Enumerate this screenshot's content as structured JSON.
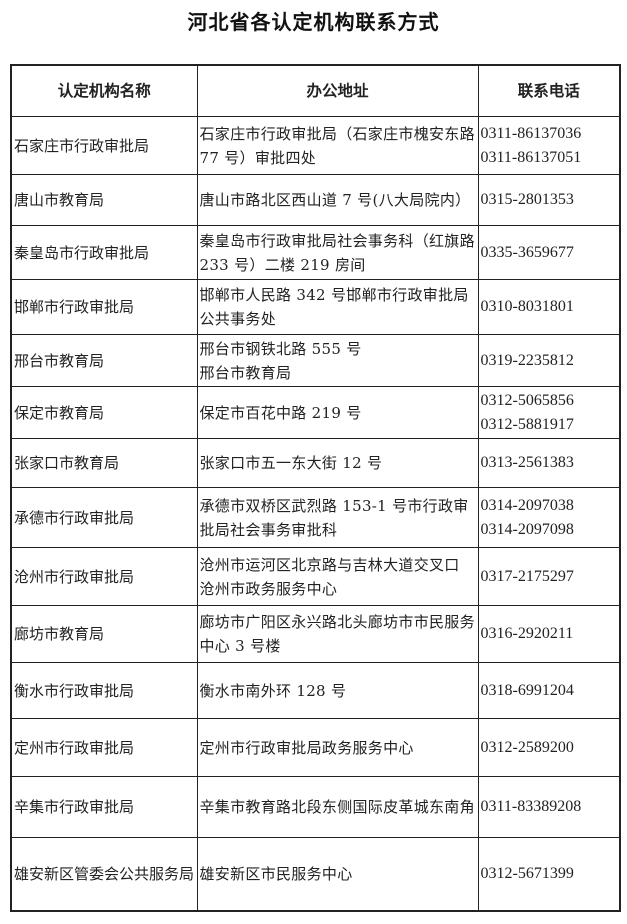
{
  "title": "河北省各认定机构联系方式",
  "headers": {
    "name": "认定机构名称",
    "address": "办公地址",
    "phone": "联系电话"
  },
  "rows": [
    {
      "name": "石家庄市行政审批局",
      "address": "石家庄市行政审批局（石家庄市槐安东路 77 号）审批四处",
      "phone": [
        "0311-86137036",
        "0311-86137051"
      ]
    },
    {
      "name": "唐山市教育局",
      "address": "唐山市路北区西山道 7 号(八大局院内）",
      "phone": [
        "0315-2801353"
      ]
    },
    {
      "name": "秦皇岛市行政审批局",
      "address": "秦皇岛市行政审批局社会事务科（红旗路 233 号）二楼 219 房间",
      "phone": [
        "0335-3659677"
      ]
    },
    {
      "name": "邯郸市行政审批局",
      "address": "邯郸市人民路 342 号邯郸市行政审批局公共事务处",
      "phone": [
        "0310-8031801"
      ]
    },
    {
      "name": "邢台市教育局",
      "address": "邢台市钢铁北路 555 号\n邢台市教育局",
      "phone": [
        "0319-2235812"
      ]
    },
    {
      "name": "保定市教育局",
      "address": "保定市百花中路 219 号",
      "phone": [
        "0312-5065856",
        "0312-5881917"
      ]
    },
    {
      "name": "张家口市教育局",
      "address": "张家口市五一东大街 12 号",
      "phone": [
        "0313-2561383"
      ]
    },
    {
      "name": "承德市行政审批局",
      "address": "承德市双桥区武烈路 153-1 号市行政审批局社会事务审批科",
      "phone": [
        "0314-2097038",
        "0314-2097098"
      ]
    },
    {
      "name": "沧州市行政审批局",
      "address": "沧州市运河区北京路与吉林大道交叉口 沧州市政务服务中心",
      "phone": [
        "0317-2175297"
      ]
    },
    {
      "name": "廊坊市教育局",
      "address": "廊坊市广阳区永兴路北头廊坊市市民服务中心 3 号楼",
      "phone": [
        "0316-2920211"
      ]
    },
    {
      "name": "衡水市行政审批局",
      "address": "衡水市南外环 128 号",
      "phone": [
        "0318-6991204"
      ]
    },
    {
      "name": "定州市行政审批局",
      "address": "定州市行政审批局政务服务中心",
      "phone": [
        "0312-2589200"
      ]
    },
    {
      "name": "辛集市行政审批局",
      "address": "辛集市教育路北段东侧国际皮革城东南角",
      "phone": [
        "0311-83389208"
      ]
    },
    {
      "name": "雄安新区管委会公共服务局",
      "address": "雄安新区市民服务中心",
      "phone": [
        "0312-5671399"
      ]
    }
  ]
}
